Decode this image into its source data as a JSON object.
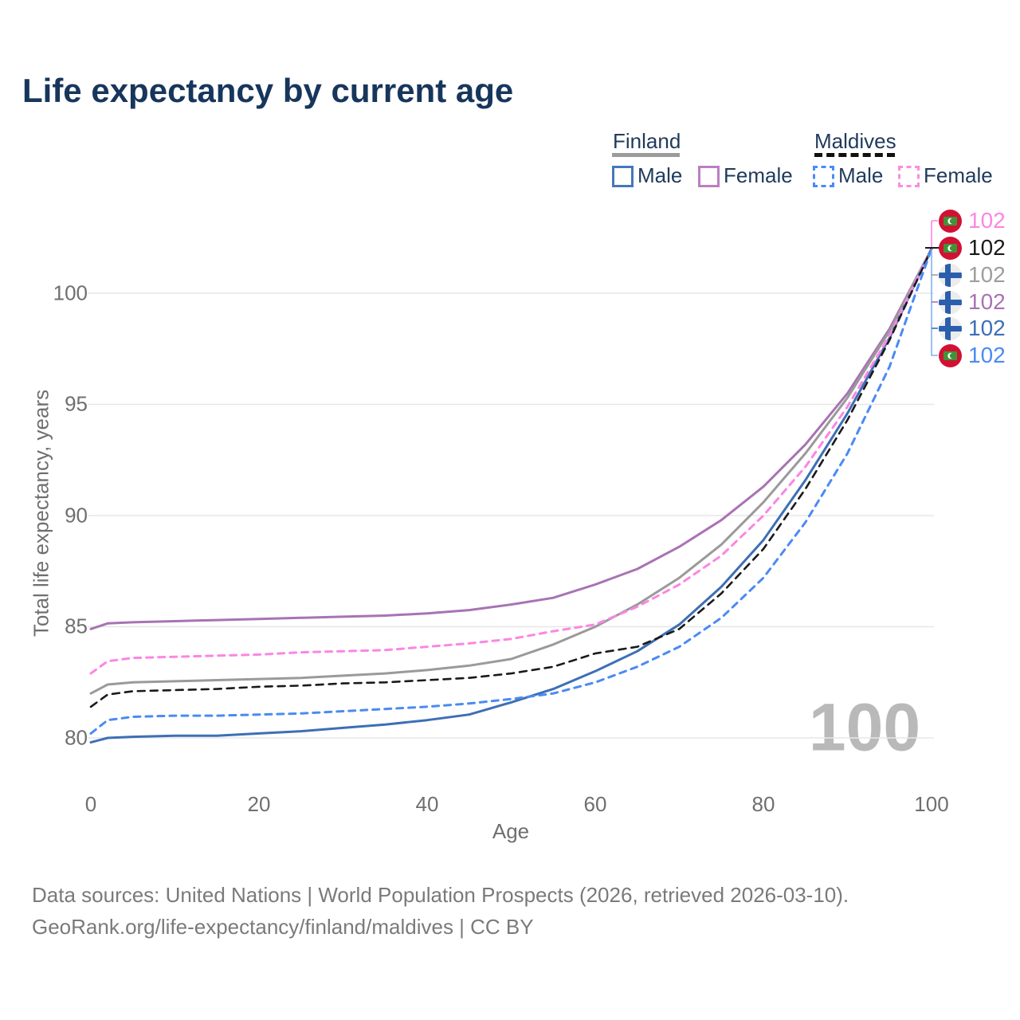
{
  "title": "Life expectancy by current age",
  "legend": {
    "groups": [
      {
        "label": "Finland",
        "underline_style": "solid",
        "underline_color": "#9b9b9b",
        "items": [
          {
            "label": "Male",
            "color": "#4677bd",
            "dashed": false
          },
          {
            "label": "Female",
            "color": "#bb7fc3",
            "dashed": false
          }
        ]
      },
      {
        "label": "Maldives",
        "underline_style": "dashed",
        "underline_color": "#111111",
        "items": [
          {
            "label": "Male",
            "color": "#4a8af5",
            "dashed": true
          },
          {
            "label": "Female",
            "color": "#fb8ce0",
            "dashed": true
          }
        ]
      }
    ]
  },
  "chart_data": {
    "type": "line",
    "title": "Life expectancy by current age",
    "xlabel": "Age",
    "ylabel": "Total life expectancy, years",
    "xticks": [
      0,
      20,
      40,
      60,
      80,
      100
    ],
    "yticks": [
      80,
      85,
      90,
      95,
      100
    ],
    "xlim": [
      0,
      100
    ],
    "ylim_display": [
      80,
      100
    ],
    "grid": "horizontal",
    "age_counter_watermark": "100",
    "x": [
      0,
      2,
      5,
      10,
      15,
      20,
      25,
      30,
      35,
      40,
      45,
      50,
      55,
      60,
      65,
      70,
      75,
      80,
      85,
      90,
      95,
      100
    ],
    "series": [
      {
        "name": "Finland Female",
        "id": "finland-female",
        "country": "Finland",
        "sex": "female",
        "color": "#a873b3",
        "dash": null,
        "width": 3,
        "values": [
          84.9,
          85.15,
          85.2,
          85.25,
          85.3,
          85.35,
          85.4,
          85.45,
          85.5,
          85.6,
          85.75,
          86.0,
          86.3,
          86.9,
          87.6,
          88.6,
          89.8,
          91.3,
          93.2,
          95.5,
          98.4,
          102
        ]
      },
      {
        "name": "Finland",
        "id": "finland-total",
        "country": "Finland",
        "sex": "both",
        "color": "#9a9a9a",
        "dash": null,
        "width": 3,
        "values": [
          82.0,
          82.4,
          82.5,
          82.55,
          82.6,
          82.65,
          82.7,
          82.8,
          82.9,
          83.05,
          83.25,
          83.55,
          84.2,
          85.0,
          86.0,
          87.2,
          88.7,
          90.6,
          92.8,
          95.3,
          98.3,
          102
        ]
      },
      {
        "name": "Finland Male",
        "id": "finland-male",
        "country": "Finland",
        "sex": "male",
        "color": "#3d6fb5",
        "dash": null,
        "width": 3,
        "values": [
          79.8,
          80.0,
          80.05,
          80.1,
          80.1,
          80.2,
          80.3,
          80.45,
          80.6,
          80.8,
          81.05,
          81.6,
          82.2,
          83.0,
          83.9,
          85.1,
          86.8,
          88.9,
          91.6,
          94.6,
          98.0,
          102
        ]
      },
      {
        "name": "Maldives Female",
        "id": "maldives-female",
        "country": "Maldives",
        "sex": "female",
        "color": "#fb86e3",
        "dash": "8 7",
        "width": 3,
        "values": [
          82.9,
          83.45,
          83.6,
          83.65,
          83.7,
          83.75,
          83.85,
          83.9,
          83.95,
          84.1,
          84.25,
          84.45,
          84.8,
          85.1,
          85.9,
          86.9,
          88.2,
          90.0,
          92.2,
          94.9,
          98.1,
          102
        ]
      },
      {
        "name": "Maldives",
        "id": "maldives-total",
        "country": "Maldives",
        "sex": "both",
        "color": "#1a1a1a",
        "dash": "9 7",
        "width": 2.6,
        "values": [
          81.4,
          81.95,
          82.1,
          82.15,
          82.2,
          82.3,
          82.35,
          82.45,
          82.5,
          82.6,
          82.7,
          82.9,
          83.2,
          83.8,
          84.1,
          84.9,
          86.5,
          88.5,
          91.2,
          94.3,
          97.9,
          102
        ]
      },
      {
        "name": "Maldives Male",
        "id": "maldives-male",
        "country": "Maldives",
        "sex": "male",
        "color": "#4a8af5",
        "dash": "8 7",
        "width": 3,
        "values": [
          80.2,
          80.8,
          80.95,
          81.0,
          81.0,
          81.05,
          81.1,
          81.2,
          81.3,
          81.4,
          81.55,
          81.75,
          82.0,
          82.5,
          83.2,
          84.1,
          85.4,
          87.2,
          89.7,
          92.8,
          96.7,
          102
        ]
      }
    ],
    "end_labels": [
      {
        "series": "Maldives Female",
        "flag": "maldives",
        "value": 102,
        "color": "#fb86e3"
      },
      {
        "series": "Maldives",
        "flag": "maldives",
        "value": 102,
        "color": "#1a1a1a"
      },
      {
        "series": "Finland",
        "flag": "finland",
        "value": 102,
        "color": "#9e9e9e"
      },
      {
        "series": "Finland Female",
        "flag": "finland",
        "value": 102,
        "color": "#a873b3"
      },
      {
        "series": "Finland Male",
        "flag": "finland",
        "value": 102,
        "color": "#3d6fb5"
      },
      {
        "series": "Maldives Male",
        "flag": "maldives",
        "value": 102,
        "color": "#4a8af5"
      }
    ]
  },
  "footer": {
    "line1": "Data sources: United Nations | World Population Prospects (2026, retrieved 2026-03-10).",
    "line2": "GeoRank.org/life-expectancy/finland/maldives | CC BY"
  }
}
